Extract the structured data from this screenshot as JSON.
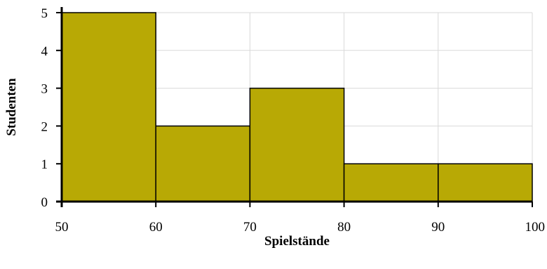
{
  "chart_data": {
    "type": "bar",
    "bins": [
      {
        "from": 50,
        "to": 60,
        "value": 5
      },
      {
        "from": 60,
        "to": 70,
        "value": 2
      },
      {
        "from": 70,
        "to": 80,
        "value": 3
      },
      {
        "from": 80,
        "to": 90,
        "value": 1
      },
      {
        "from": 90,
        "to": 100,
        "value": 1
      }
    ],
    "xlabel": "Spielstände",
    "ylabel": "Studenten",
    "xlim": [
      50,
      100
    ],
    "ylim": [
      0,
      5
    ],
    "x_ticks": [
      "50",
      "60",
      "70",
      "80",
      "90",
      "100"
    ],
    "y_ticks": [
      "0",
      "1",
      "2",
      "3",
      "4",
      "5"
    ],
    "grid": true,
    "bar_color": "#b8a905"
  }
}
